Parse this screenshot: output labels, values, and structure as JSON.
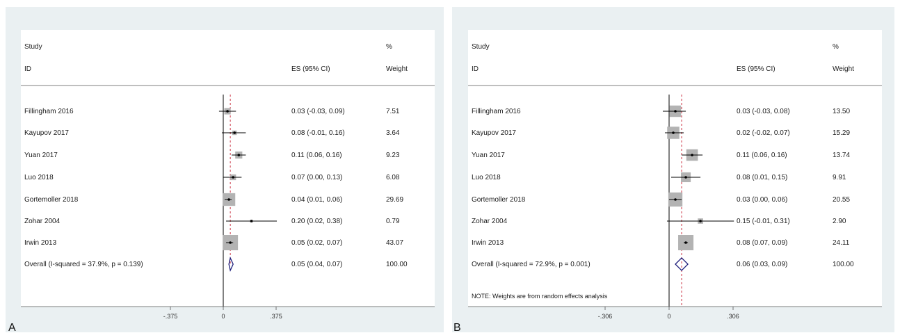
{
  "chart_data": [
    {
      "panel_letter": "A",
      "type": "forest",
      "header_study": "Study",
      "header_id": "ID",
      "header_es": "ES (95% CI)",
      "header_pct": "%",
      "header_weight": "Weight",
      "studies": [
        {
          "label": "Fillingham 2016",
          "es": 0.03,
          "lo": -0.03,
          "hi": 0.09,
          "es_text": "0.03 (-0.03, 0.09)",
          "weight": 7.51,
          "weight_text": "7.51"
        },
        {
          "label": "Kayupov 2017",
          "es": 0.08,
          "lo": -0.01,
          "hi": 0.16,
          "es_text": "0.08 (-0.01, 0.16)",
          "weight": 3.64,
          "weight_text": "3.64"
        },
        {
          "label": "Yuan 2017",
          "es": 0.11,
          "lo": 0.06,
          "hi": 0.16,
          "es_text": "0.11 (0.06, 0.16)",
          "weight": 9.23,
          "weight_text": "9.23"
        },
        {
          "label": "Luo 2018",
          "es": 0.07,
          "lo": 0.0,
          "hi": 0.13,
          "es_text": "0.07 (0.00, 0.13)",
          "weight": 6.08,
          "weight_text": "6.08"
        },
        {
          "label": "Gortemoller 2018",
          "es": 0.04,
          "lo": 0.01,
          "hi": 0.06,
          "es_text": "0.04 (0.01, 0.06)",
          "weight": 29.69,
          "weight_text": "29.69"
        },
        {
          "label": "Zohar 2004",
          "es": 0.2,
          "lo": 0.02,
          "hi": 0.38,
          "es_text": "0.20 (0.02, 0.38)",
          "weight": 0.79,
          "weight_text": "0.79"
        },
        {
          "label": "Irwin 2013",
          "es": 0.05,
          "lo": 0.02,
          "hi": 0.07,
          "es_text": "0.05 (0.02, 0.07)",
          "weight": 43.07,
          "weight_text": "43.07"
        }
      ],
      "overall": {
        "label": "Overall  (I-squared = 37.9%, p = 0.139)",
        "es": 0.05,
        "lo": 0.04,
        "hi": 0.07,
        "es_text": "0.05 (0.04, 0.07)",
        "weight_text": "100.00"
      },
      "note": "",
      "xlim": [
        -0.375,
        0.375
      ],
      "ticks": [
        -0.375,
        0,
        0.375
      ],
      "tick_labels": [
        "-.375",
        "0",
        ".375"
      ]
    },
    {
      "panel_letter": "B",
      "type": "forest",
      "header_study": "Study",
      "header_id": "ID",
      "header_es": "ES (95% CI)",
      "header_pct": "%",
      "header_weight": "Weight",
      "studies": [
        {
          "label": "Fillingham 2016",
          "es": 0.03,
          "lo": -0.03,
          "hi": 0.08,
          "es_text": "0.03 (-0.03, 0.08)",
          "weight": 13.5,
          "weight_text": "13.50"
        },
        {
          "label": "Kayupov 2017",
          "es": 0.02,
          "lo": -0.02,
          "hi": 0.07,
          "es_text": "0.02 (-0.02, 0.07)",
          "weight": 15.29,
          "weight_text": "15.29"
        },
        {
          "label": "Yuan 2017",
          "es": 0.11,
          "lo": 0.06,
          "hi": 0.16,
          "es_text": "0.11 (0.06, 0.16)",
          "weight": 13.74,
          "weight_text": "13.74"
        },
        {
          "label": "Luo 2018",
          "es": 0.08,
          "lo": 0.01,
          "hi": 0.15,
          "es_text": "0.08 (0.01, 0.15)",
          "weight": 9.91,
          "weight_text": "9.91"
        },
        {
          "label": "Gortemoller 2018",
          "es": 0.03,
          "lo": 0.0,
          "hi": 0.06,
          "es_text": "0.03 (0.00, 0.06)",
          "weight": 20.55,
          "weight_text": "20.55"
        },
        {
          "label": "Zohar 2004",
          "es": 0.15,
          "lo": -0.01,
          "hi": 0.31,
          "es_text": "0.15 (-0.01, 0.31)",
          "weight": 2.9,
          "weight_text": "2.90"
        },
        {
          "label": "Irwin 2013",
          "es": 0.08,
          "lo": 0.07,
          "hi": 0.09,
          "es_text": "0.08 (0.07, 0.09)",
          "weight": 24.11,
          "weight_text": "24.11"
        }
      ],
      "overall": {
        "label": "Overall  (I-squared = 72.9%, p = 0.001)",
        "es": 0.06,
        "lo": 0.03,
        "hi": 0.09,
        "es_text": "0.06 (0.03, 0.09)",
        "weight_text": "100.00"
      },
      "note": "NOTE: Weights are from random effects analysis",
      "xlim": [
        -0.306,
        0.306
      ],
      "ticks": [
        -0.306,
        0,
        0.306
      ],
      "tick_labels": [
        "-.306",
        "0",
        ".306"
      ]
    }
  ],
  "colors": {
    "panel_background": "#eaf0f2",
    "weight_box": "#b3b3b3",
    "ci_line": "#000000",
    "null_line": "#000000",
    "overall_dashed_line": "#cc3344",
    "overall_diamond": "#1c1c7a"
  }
}
